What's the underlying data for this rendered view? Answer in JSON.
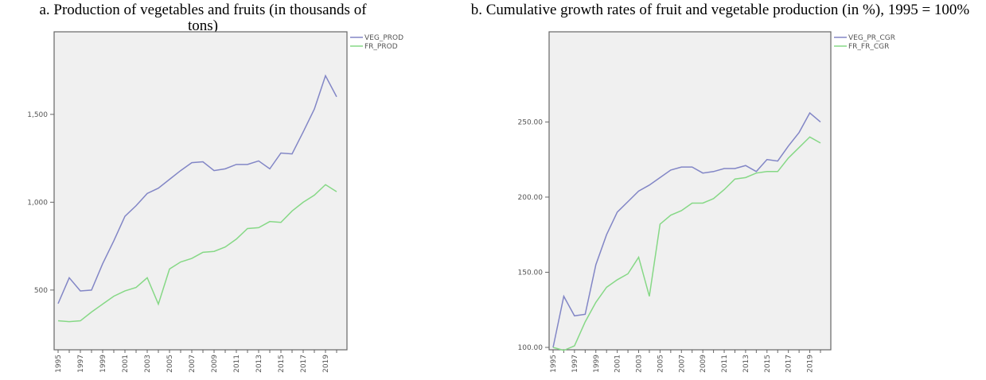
{
  "chart_data": [
    {
      "type": "line",
      "title": "a. Production of vegetables and fruits (in thousands of tons)",
      "categories": [
        "1995",
        null,
        "1997",
        null,
        "1999",
        null,
        "2001",
        null,
        "2003",
        null,
        "2005",
        null,
        "2007",
        null,
        "2009",
        null,
        "2011",
        null,
        "2013",
        null,
        "2015",
        null,
        "2017",
        null,
        "2019",
        null
      ],
      "series": [
        {
          "name": "VEG_PROD",
          "color": "#8286c6",
          "values": [
            423,
            570,
            495,
            500,
            650,
            780,
            920,
            980,
            1050,
            1080,
            1130,
            1180,
            1225,
            1230,
            1180,
            1190,
            1215,
            1215,
            1235,
            1190,
            1280,
            1275,
            1400,
            1530,
            1720,
            1600
          ]
        },
        {
          "name": "FR_PROD",
          "color": "#86d886",
          "values": [
            325,
            320,
            325,
            375,
            420,
            465,
            495,
            515,
            570,
            420,
            620,
            660,
            680,
            715,
            720,
            745,
            790,
            850,
            855,
            890,
            885,
            950,
            1000,
            1040,
            1100,
            1060
          ]
        }
      ],
      "ylim": [
        160,
        1970
      ],
      "yticks": [
        500,
        {
          "value": 1000,
          "label": "1,000"
        },
        {
          "value": 1500,
          "label": "1,500"
        }
      ]
    },
    {
      "type": "line",
      "title": "b. Cumulative growth rates of fruit and vegetable production (in %), 1995 = 100%",
      "categories": [
        "1995",
        null,
        "1997",
        null,
        "1999",
        null,
        "2001",
        null,
        "2003",
        null,
        "2005",
        null,
        "2007",
        null,
        "2009",
        null,
        "2011",
        null,
        "2013",
        null,
        "2015",
        null,
        "2017",
        null,
        "2019",
        null
      ],
      "series": [
        {
          "name": "VEG_PR_CGR",
          "color": "#8286c6",
          "values": [
            100,
            134,
            121,
            122,
            155,
            175,
            190,
            197,
            204,
            208,
            213,
            218,
            220,
            220,
            216,
            217,
            219,
            219,
            221,
            217,
            225,
            224,
            234,
            243,
            256,
            250
          ]
        },
        {
          "name": "FR_FR_CGR",
          "color": "#86d886",
          "values": [
            100,
            98,
            101,
            117,
            130,
            140,
            145,
            149,
            160,
            134,
            182,
            188,
            191,
            196,
            196,
            199,
            205,
            212,
            213,
            216,
            217,
            217,
            226,
            233,
            240,
            236
          ]
        }
      ],
      "ylim": [
        98.4,
        310
      ],
      "yticks": [
        {
          "value": 100,
          "label": "100.00"
        },
        {
          "value": 150,
          "label": "150.00"
        },
        {
          "value": 200,
          "label": "200.00"
        },
        {
          "value": 250,
          "label": "250.00"
        }
      ]
    }
  ]
}
